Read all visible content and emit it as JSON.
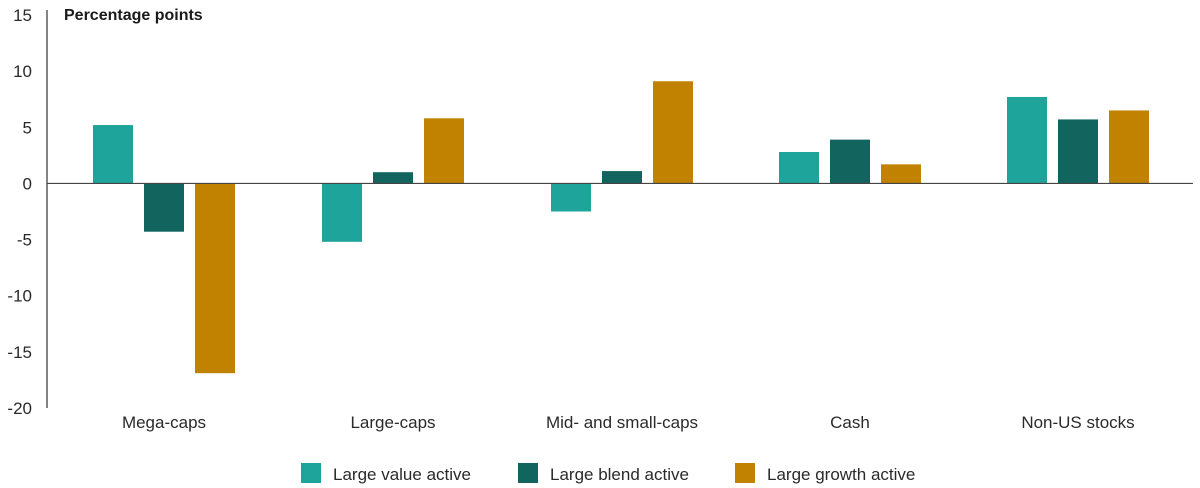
{
  "chart_data": {
    "type": "bar",
    "title": "",
    "xlabel": "",
    "ylabel": "Percentage points",
    "ylim": [
      -20,
      15
    ],
    "yticks": [
      15,
      10,
      5,
      0,
      -5,
      -10,
      -15,
      -20
    ],
    "categories": [
      "Mega-caps",
      "Large-caps",
      "Mid- and small-caps",
      "Cash",
      "Non-US stocks"
    ],
    "series": [
      {
        "name": "Large value active",
        "color": "#1fa49b",
        "values": [
          5.2,
          -5.2,
          -2.5,
          2.8,
          7.7
        ]
      },
      {
        "name": "Large blend active",
        "color": "#12655f",
        "values": [
          -4.3,
          1.0,
          1.1,
          3.9,
          5.7
        ]
      },
      {
        "name": "Large growth active",
        "color": "#c08200",
        "values": [
          -16.9,
          5.8,
          9.1,
          1.7,
          6.5
        ]
      }
    ],
    "legend_position": "bottom"
  }
}
